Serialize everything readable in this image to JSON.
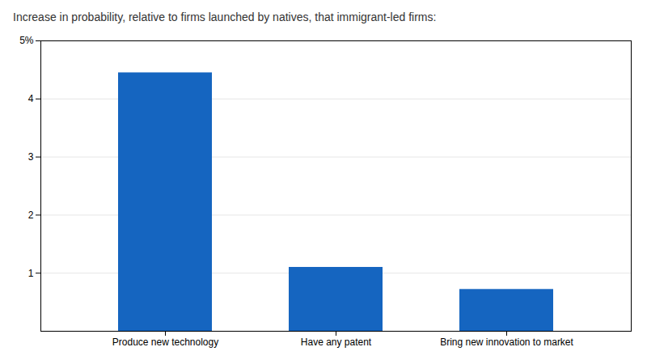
{
  "chart_data": {
    "type": "bar",
    "subtitle": "Increase in probability, relative to firms launched by natives, that immigrant-led firms:",
    "categories": [
      "Produce new technology",
      "Have any patent",
      "Bring new innovation to market"
    ],
    "values": [
      4.45,
      1.1,
      0.72
    ],
    "color": "#1565C0",
    "ylim": [
      0,
      5
    ],
    "yticks": [
      1,
      2,
      3,
      4,
      {
        "value": 5,
        "label": "5%"
      }
    ],
    "grid": true
  }
}
